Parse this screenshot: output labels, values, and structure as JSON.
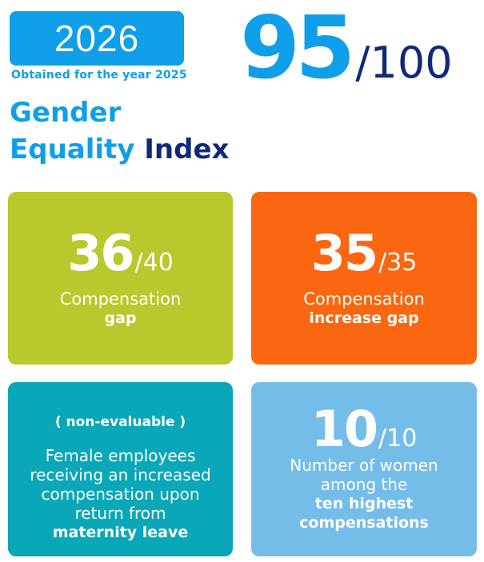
{
  "header": {
    "year": "2026",
    "obtained": "Obtained for the year 2025",
    "title_line1": "Gender",
    "title_line2a": "Equality",
    "title_line2b": "Index",
    "score": "95",
    "score_max": "/100"
  },
  "cards": [
    {
      "score": "36",
      "max": "/40",
      "line1": "Compensation",
      "line2": "gap",
      "color": "#b9c82c"
    },
    {
      "score": "35",
      "max": "/35",
      "line1": "Compensation",
      "line2": "increase gap",
      "color": "#fb6610"
    },
    {
      "status": "( non-evaluable )",
      "lines": [
        "Female employees",
        "receiving an increased",
        "compensation upon",
        "return from"
      ],
      "strong": "maternity leave",
      "color": "#0aa7b8"
    },
    {
      "score": "10",
      "max": "/10",
      "lines": [
        "Number of women",
        "among the"
      ],
      "strong": [
        "ten highest",
        "compensations"
      ],
      "color": "#75bde9"
    }
  ],
  "colors": {
    "accent_blue": "#0f9fe8",
    "navy": "#0f2a7a"
  }
}
